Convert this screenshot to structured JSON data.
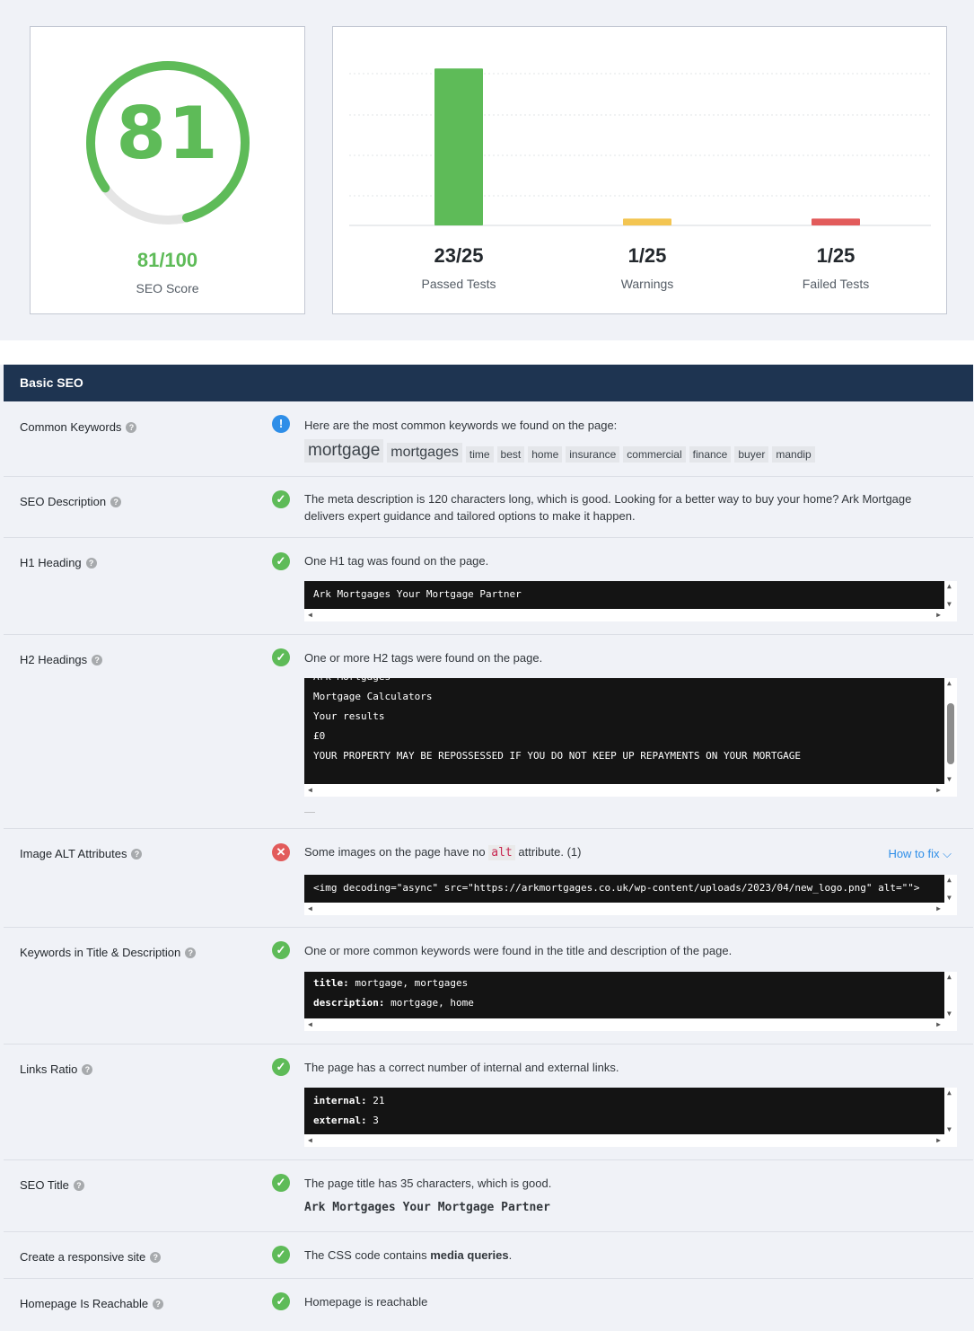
{
  "score": {
    "number": "81",
    "value": "81/100",
    "label": "SEO Score",
    "fraction": 0.81,
    "color": "#5ebb58"
  },
  "chart_data": {
    "type": "bar",
    "categories": [
      "Passed Tests",
      "Warnings",
      "Failed Tests"
    ],
    "values": [
      23,
      1,
      1
    ],
    "ylim": [
      0,
      25
    ],
    "colors": [
      "#5ebb58",
      "#f3c552",
      "#e25b5b"
    ],
    "value_labels": [
      "23/25",
      "1/25",
      "1/25"
    ]
  },
  "section": {
    "title": "Basic SEO"
  },
  "rows": {
    "keywords": {
      "label": "Common Keywords",
      "message": "Here are the most common keywords we found on the page:",
      "items": [
        "mortgage",
        "mortgages",
        "time",
        "best",
        "home",
        "insurance",
        "commercial",
        "finance",
        "buyer",
        "mandip"
      ]
    },
    "description": {
      "label": "SEO Description",
      "message": "The meta description is 120 characters long, which is good. Looking for a better way to buy your home? Ark Mortgage delivers expert guidance and tailored options to make it happen."
    },
    "h1": {
      "label": "H1 Heading",
      "message": "One H1 tag was found on the page.",
      "code": [
        "Ark Mortgages Your Mortgage Partner"
      ]
    },
    "h2": {
      "label": "H2 Headings",
      "message": "One or more H2 tags were found on the page.",
      "code": [
        "Ark Mortgages",
        "Mortgage Calculators",
        "Your results",
        "£0",
        "YOUR PROPERTY MAY BE REPOSSESSED IF YOU DO NOT KEEP UP REPAYMENTS ON YOUR MORTGAGE"
      ]
    },
    "img_alt": {
      "label": "Image ALT Attributes",
      "message_before": "Some images on the page have no",
      "message_code": "alt",
      "message_after": "attribute. (1)",
      "how_to_fix": "How to fix",
      "code": [
        "<img decoding=\"async\" src=\"https://arkmortgages.co.uk/wp-content/uploads/2023/04/new_logo.png\" alt=\"\">"
      ]
    },
    "kw_title_desc": {
      "label": "Keywords in Title & Description",
      "message": "One or more common keywords were found in the title and description of the page.",
      "code_keys": [
        "title:",
        "description:"
      ],
      "code_vals": [
        "mortgage, mortgages",
        "mortgage, home"
      ]
    },
    "links": {
      "label": "Links Ratio",
      "message": "The page has a correct number of internal and external links.",
      "code_keys": [
        "internal:",
        "external:"
      ],
      "code_vals": [
        "21",
        "3"
      ]
    },
    "seo_title": {
      "label": "SEO Title",
      "message": "The page title has 35 characters, which is good.",
      "title_value": "Ark Mortgages Your Mortgage Partner"
    },
    "responsive": {
      "label": "Create a responsive site",
      "message_before": "The CSS code contains",
      "message_bold": "media queries",
      "message_after": "."
    },
    "homepage": {
      "label": "Homepage Is Reachable",
      "message": "Homepage is reachable"
    }
  }
}
